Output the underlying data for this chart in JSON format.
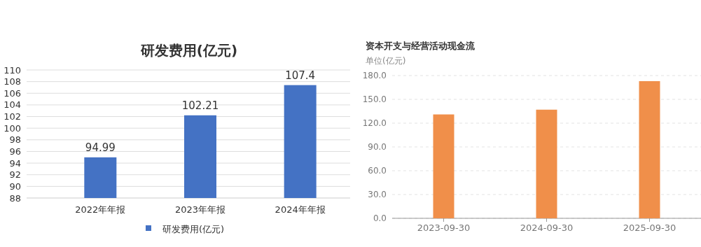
{
  "chart_data": [
    {
      "type": "bar",
      "title": "研发费用(亿元)",
      "categories": [
        "2022年年报",
        "2023年年报",
        "2024年年报"
      ],
      "series": [
        {
          "name": "研发费用(亿元)",
          "color": "#4472c4",
          "values": [
            94.99,
            102.21,
            107.4
          ]
        }
      ],
      "ylim": [
        88,
        110
      ],
      "yticks": [
        88,
        90,
        92,
        94,
        96,
        98,
        100,
        102,
        104,
        106,
        108,
        110
      ],
      "grid": true,
      "legend": "bottom",
      "data_labels": true
    },
    {
      "type": "bar",
      "title": "资本开支与经营活动现金流",
      "ylabel": "单位(亿元)",
      "categories": [
        "2023-09-30",
        "2024-09-30",
        "2025-09-30"
      ],
      "series": [
        {
          "color": "#f08f4a",
          "values": [
            131,
            137,
            173
          ]
        }
      ],
      "ylim": [
        0,
        180
      ],
      "yticks": [
        {
          "value": 0,
          "label": "0.0"
        },
        {
          "value": 30,
          "label": "30.0"
        },
        {
          "value": 60,
          "label": "60.0"
        },
        {
          "value": 90,
          "label": "90.0"
        },
        {
          "value": 120,
          "label": "120.0"
        },
        {
          "value": 150,
          "label": "150.0"
        },
        {
          "value": 180,
          "label": "180.0"
        }
      ],
      "grid": true
    }
  ]
}
